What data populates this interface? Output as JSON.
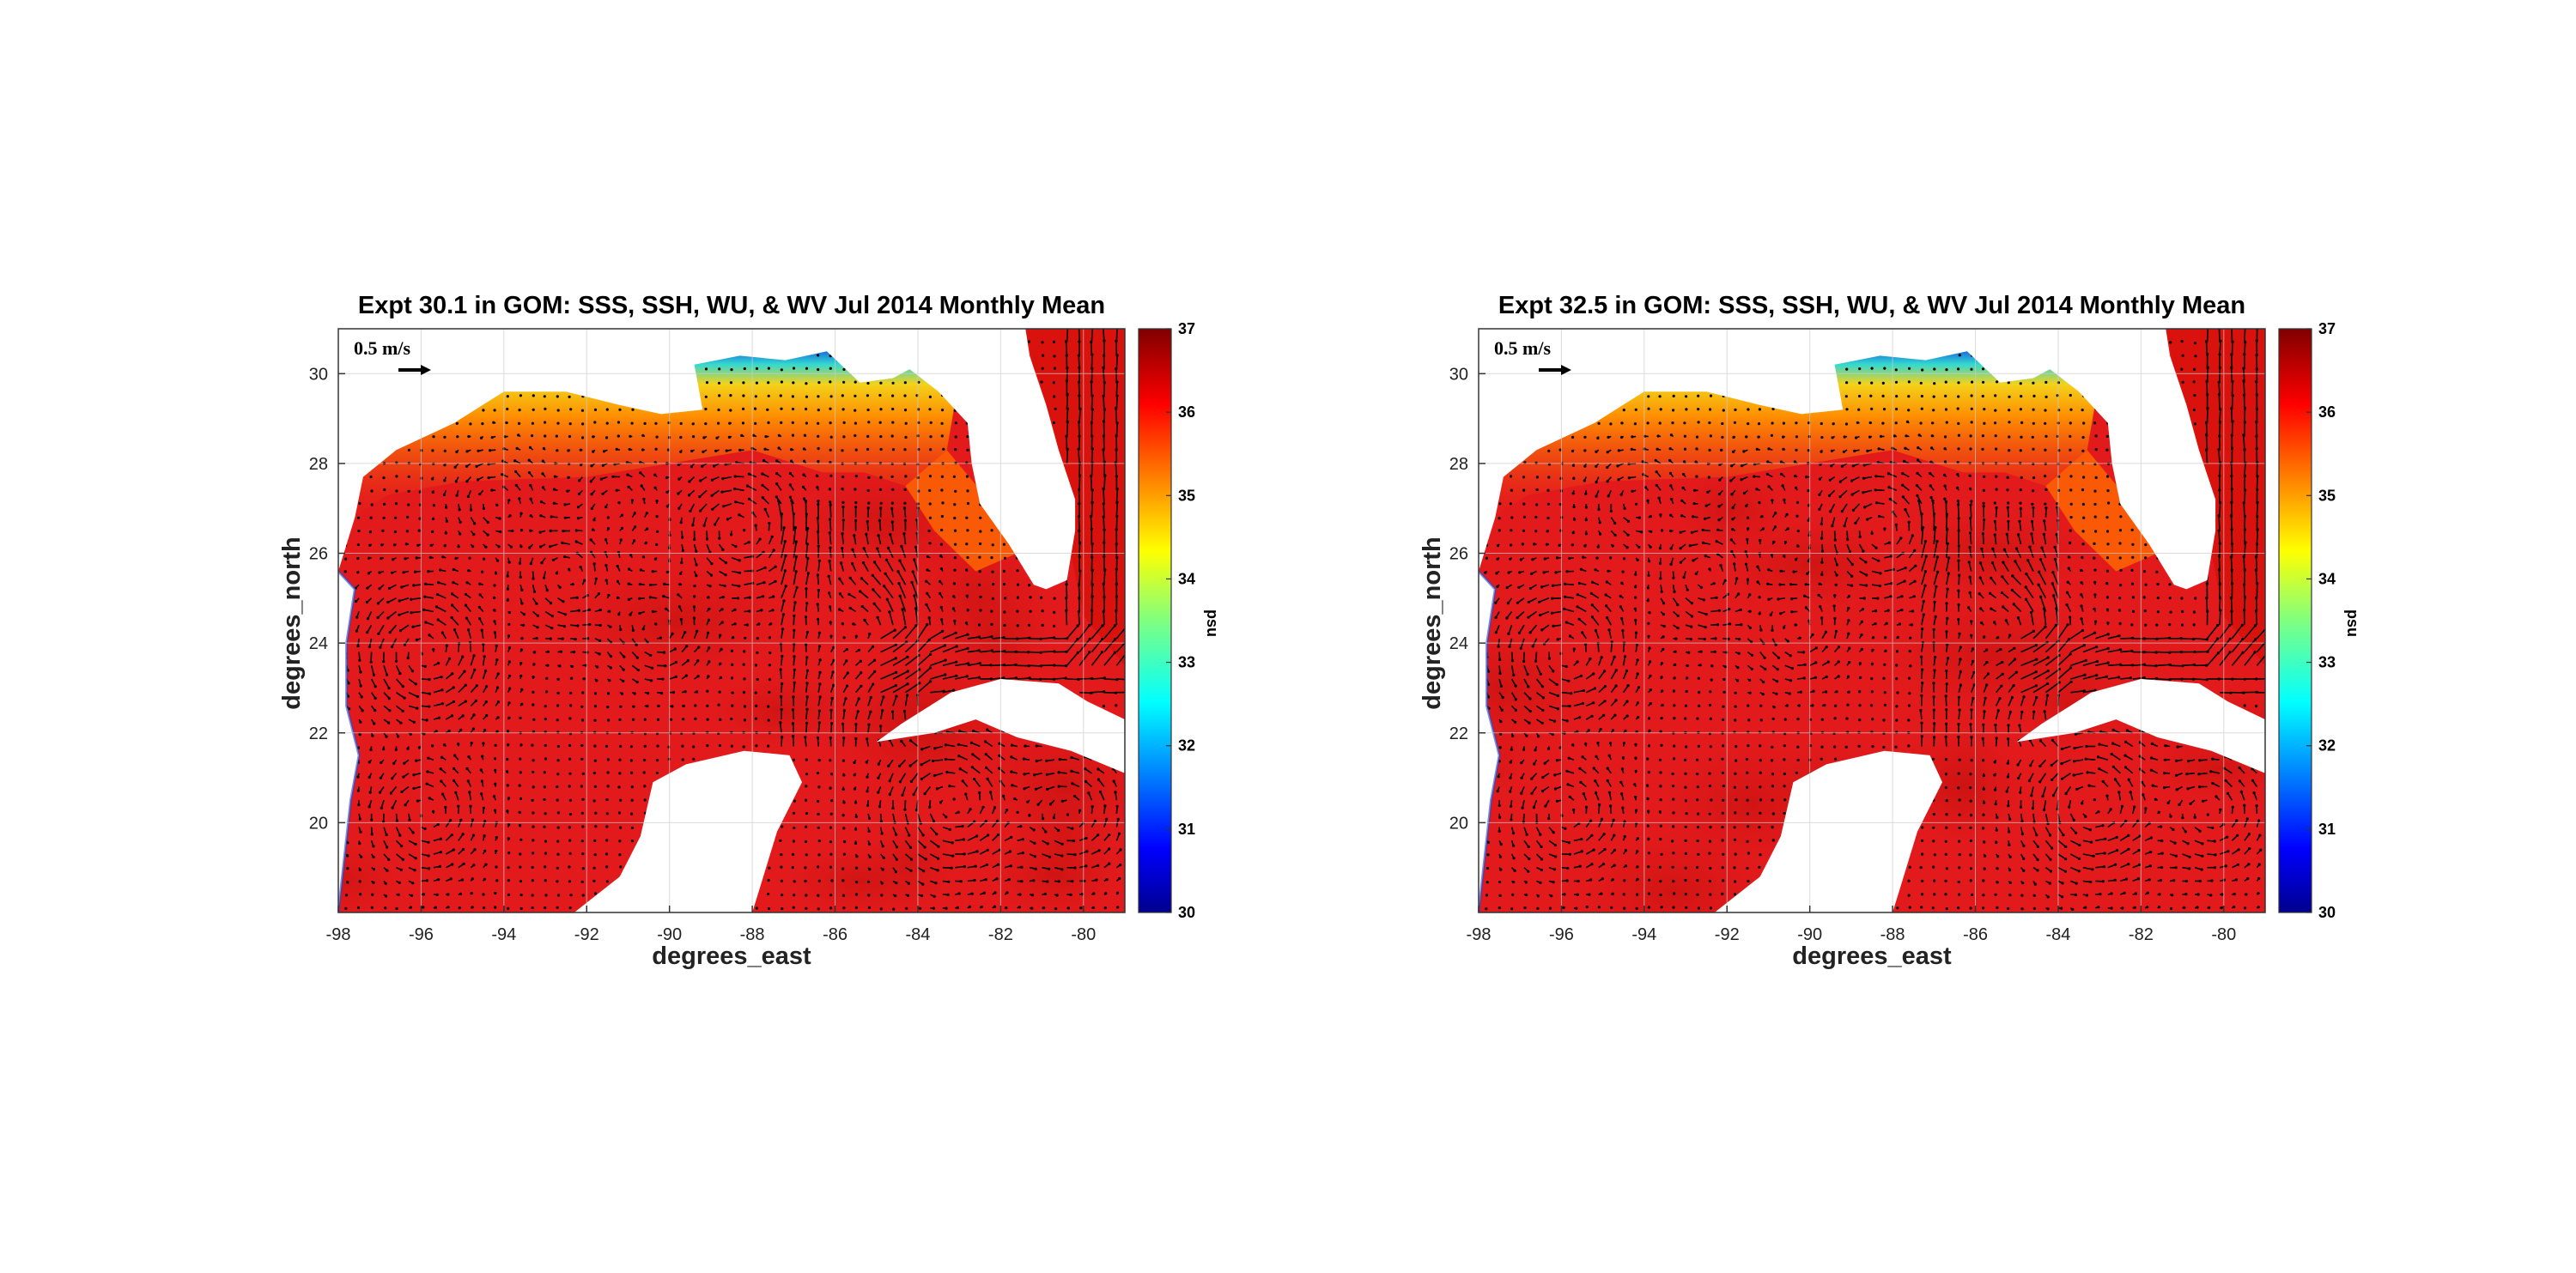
{
  "panels": [
    {
      "title": "Expt 30.1 in GOM: SSS, SSH, WU, & WV Jul 2014 Monthly Mean",
      "xlabel": "degrees_east",
      "ylabel": "degrees_north",
      "reference_vector_label": "0.5 m/s",
      "colorbar_unit": "psu",
      "colorbar_ticks": [
        "30",
        "31",
        "32",
        "33",
        "34",
        "35",
        "36",
        "37"
      ],
      "x_ticks": [
        "-98",
        "-96",
        "-94",
        "-92",
        "-90",
        "-88",
        "-86",
        "-84",
        "-82",
        "-80"
      ],
      "y_ticks": [
        "20",
        "22",
        "24",
        "26",
        "28",
        "30"
      ],
      "northern_shelf_salinity": "low",
      "variant": 0
    },
    {
      "title": "Expt 32.5 in GOM: SSS, SSH, WU, & WV Jul 2014 Monthly Mean",
      "xlabel": "degrees_east",
      "ylabel": "degrees_north",
      "reference_vector_label": "0.5 m/s",
      "colorbar_unit": "psu",
      "colorbar_ticks": [
        "30",
        "31",
        "32",
        "33",
        "34",
        "35",
        "36",
        "37"
      ],
      "x_ticks": [
        "-98",
        "-96",
        "-94",
        "-92",
        "-90",
        "-88",
        "-86",
        "-84",
        "-82",
        "-80"
      ],
      "y_ticks": [
        "20",
        "22",
        "24",
        "26",
        "28",
        "30"
      ],
      "northern_shelf_salinity": "low",
      "variant": 1
    }
  ],
  "map": {
    "lon_range": [
      -98,
      -79
    ],
    "lat_range": [
      18,
      31
    ],
    "salinity_range": [
      30,
      37
    ],
    "colormap": "jet",
    "land_color": "#ffffff",
    "arrow_color": "#000000"
  }
}
